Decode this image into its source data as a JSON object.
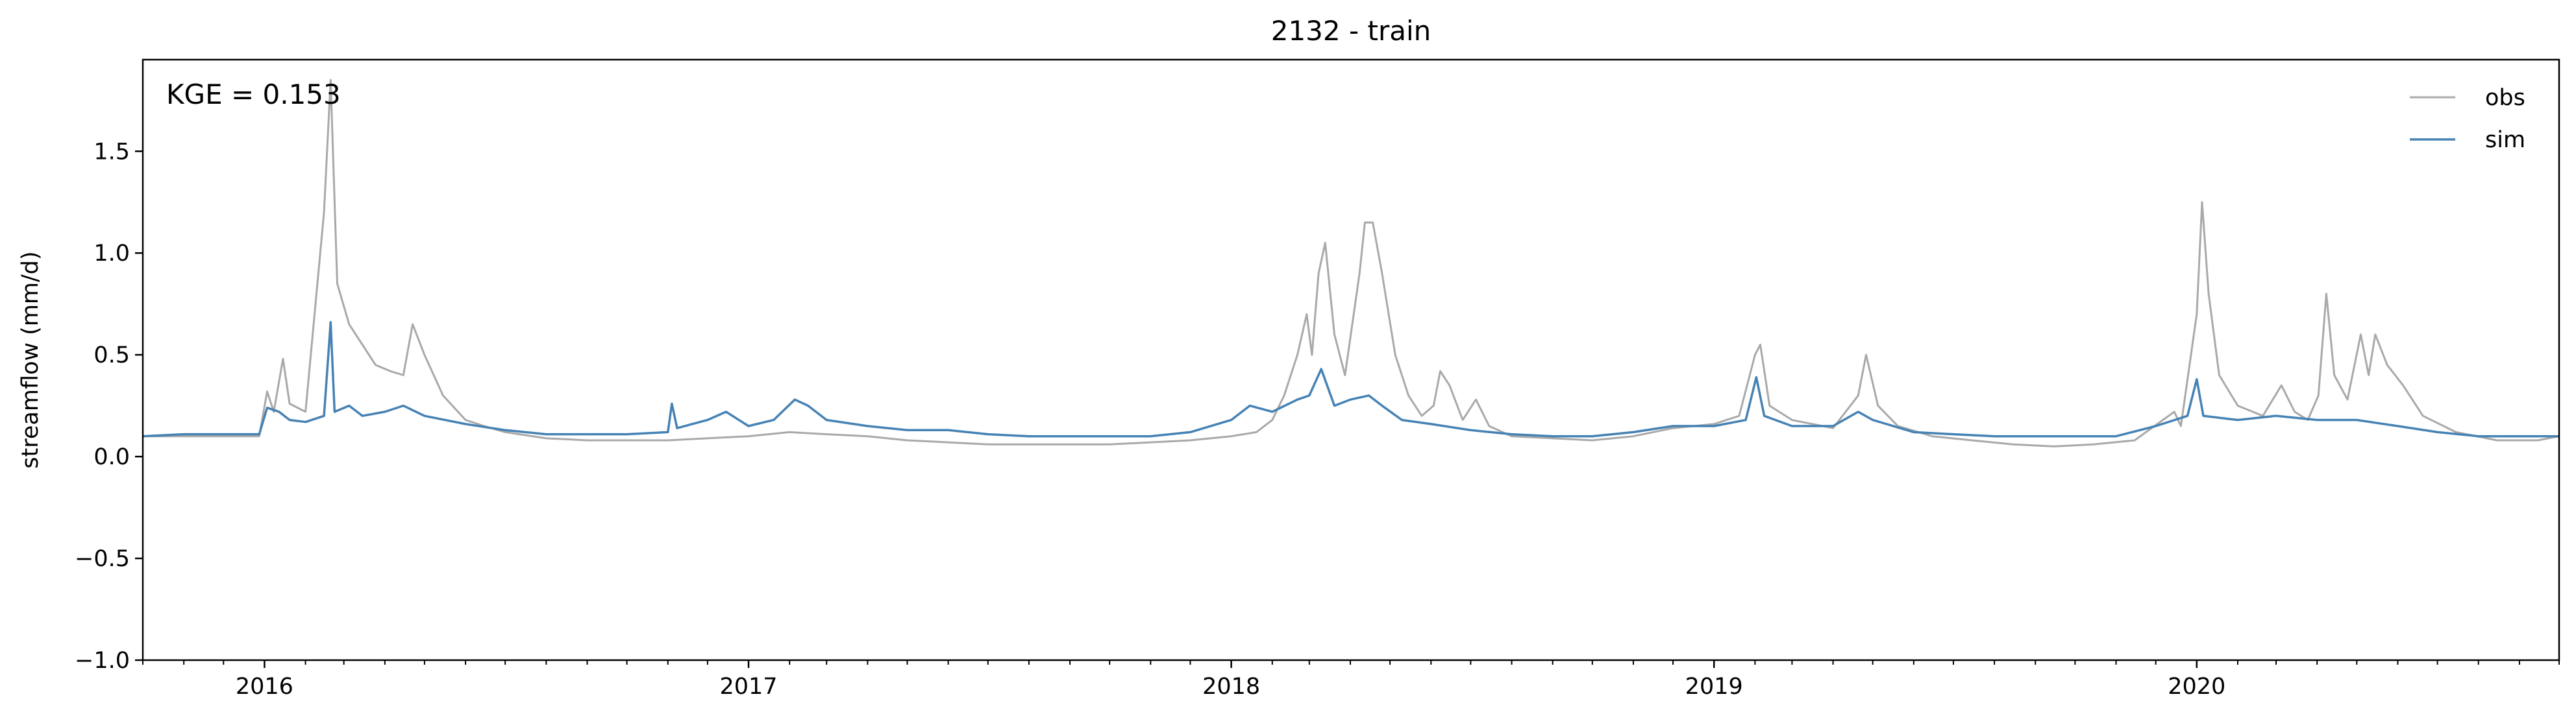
{
  "chart_data": {
    "type": "line",
    "title": "2132 - train",
    "xlabel": "",
    "ylabel": "streamflow (mm/d)",
    "annotation": "KGE = 0.153",
    "xlim": [
      "2015-10-01",
      "2020-10-01"
    ],
    "ylim": [
      -1.0,
      1.95
    ],
    "yticks": [
      -1.0,
      -0.5,
      0.0,
      0.5,
      1.0,
      1.5
    ],
    "ytick_labels": [
      "−1.0",
      "−0.5",
      "0.0",
      "0.5",
      "1.0",
      "1.5"
    ],
    "xticks": [
      "2016-01-01",
      "2017-01-01",
      "2018-01-01",
      "2019-01-01",
      "2020-01-01"
    ],
    "xtick_labels": [
      "2016",
      "2017",
      "2018",
      "2019",
      "2020"
    ],
    "grid": false,
    "legend": "top-right",
    "series": [
      {
        "name": "obs",
        "color": "#a9a9a9",
        "points": [
          [
            "2015-10-01",
            0.1
          ],
          [
            "2015-11-01",
            0.1
          ],
          [
            "2015-12-01",
            0.1
          ],
          [
            "2015-12-28",
            0.1
          ],
          [
            "2016-01-03",
            0.32
          ],
          [
            "2016-01-08",
            0.22
          ],
          [
            "2016-01-15",
            0.48
          ],
          [
            "2016-01-20",
            0.26
          ],
          [
            "2016-02-01",
            0.22
          ],
          [
            "2016-02-15",
            1.2
          ],
          [
            "2016-02-20",
            1.85
          ],
          [
            "2016-02-25",
            0.85
          ],
          [
            "2016-03-05",
            0.65
          ],
          [
            "2016-03-15",
            0.55
          ],
          [
            "2016-03-25",
            0.45
          ],
          [
            "2016-04-05",
            0.42
          ],
          [
            "2016-04-15",
            0.4
          ],
          [
            "2016-04-22",
            0.65
          ],
          [
            "2016-05-01",
            0.5
          ],
          [
            "2016-05-15",
            0.3
          ],
          [
            "2016-06-01",
            0.18
          ],
          [
            "2016-06-15",
            0.15
          ],
          [
            "2016-07-01",
            0.12
          ],
          [
            "2016-08-01",
            0.09
          ],
          [
            "2016-09-01",
            0.08
          ],
          [
            "2016-10-01",
            0.08
          ],
          [
            "2016-11-01",
            0.08
          ],
          [
            "2016-12-01",
            0.09
          ],
          [
            "2017-01-01",
            0.1
          ],
          [
            "2017-02-01",
            0.12
          ],
          [
            "2017-03-01",
            0.11
          ],
          [
            "2017-04-01",
            0.1
          ],
          [
            "2017-05-01",
            0.08
          ],
          [
            "2017-06-01",
            0.07
          ],
          [
            "2017-07-01",
            0.06
          ],
          [
            "2017-08-01",
            0.06
          ],
          [
            "2017-09-01",
            0.06
          ],
          [
            "2017-10-01",
            0.06
          ],
          [
            "2017-11-01",
            0.07
          ],
          [
            "2017-12-01",
            0.08
          ],
          [
            "2018-01-01",
            0.1
          ],
          [
            "2018-01-20",
            0.12
          ],
          [
            "2018-02-01",
            0.18
          ],
          [
            "2018-02-10",
            0.3
          ],
          [
            "2018-02-20",
            0.5
          ],
          [
            "2018-02-27",
            0.7
          ],
          [
            "2018-03-03",
            0.5
          ],
          [
            "2018-03-08",
            0.9
          ],
          [
            "2018-03-13",
            1.05
          ],
          [
            "2018-03-20",
            0.6
          ],
          [
            "2018-03-28",
            0.4
          ],
          [
            "2018-04-08",
            0.9
          ],
          [
            "2018-04-12",
            1.15
          ],
          [
            "2018-04-18",
            1.15
          ],
          [
            "2018-04-25",
            0.9
          ],
          [
            "2018-05-05",
            0.5
          ],
          [
            "2018-05-15",
            0.3
          ],
          [
            "2018-05-25",
            0.2
          ],
          [
            "2018-06-03",
            0.25
          ],
          [
            "2018-06-08",
            0.42
          ],
          [
            "2018-06-15",
            0.35
          ],
          [
            "2018-06-25",
            0.18
          ],
          [
            "2018-07-05",
            0.28
          ],
          [
            "2018-07-15",
            0.15
          ],
          [
            "2018-08-01",
            0.1
          ],
          [
            "2018-09-01",
            0.09
          ],
          [
            "2018-10-01",
            0.08
          ],
          [
            "2018-11-01",
            0.1
          ],
          [
            "2018-12-01",
            0.14
          ],
          [
            "2019-01-01",
            0.16
          ],
          [
            "2019-01-20",
            0.2
          ],
          [
            "2019-02-01",
            0.5
          ],
          [
            "2019-02-05",
            0.55
          ],
          [
            "2019-02-12",
            0.25
          ],
          [
            "2019-03-01",
            0.18
          ],
          [
            "2019-04-01",
            0.14
          ],
          [
            "2019-04-20",
            0.3
          ],
          [
            "2019-04-26",
            0.5
          ],
          [
            "2019-05-05",
            0.25
          ],
          [
            "2019-05-20",
            0.15
          ],
          [
            "2019-06-15",
            0.1
          ],
          [
            "2019-07-15",
            0.08
          ],
          [
            "2019-08-15",
            0.06
          ],
          [
            "2019-09-15",
            0.05
          ],
          [
            "2019-10-15",
            0.06
          ],
          [
            "2019-11-15",
            0.08
          ],
          [
            "2019-12-15",
            0.22
          ],
          [
            "2019-12-20",
            0.15
          ],
          [
            "2020-01-01",
            0.7
          ],
          [
            "2020-01-05",
            1.25
          ],
          [
            "2020-01-10",
            0.8
          ],
          [
            "2020-01-18",
            0.4
          ],
          [
            "2020-02-01",
            0.25
          ],
          [
            "2020-02-20",
            0.2
          ],
          [
            "2020-03-05",
            0.35
          ],
          [
            "2020-03-15",
            0.22
          ],
          [
            "2020-03-25",
            0.18
          ],
          [
            "2020-04-02",
            0.3
          ],
          [
            "2020-04-08",
            0.8
          ],
          [
            "2020-04-14",
            0.4
          ],
          [
            "2020-04-24",
            0.28
          ],
          [
            "2020-05-04",
            0.6
          ],
          [
            "2020-05-10",
            0.4
          ],
          [
            "2020-05-15",
            0.6
          ],
          [
            "2020-05-24",
            0.45
          ],
          [
            "2020-06-05",
            0.35
          ],
          [
            "2020-06-20",
            0.2
          ],
          [
            "2020-07-15",
            0.12
          ],
          [
            "2020-08-15",
            0.08
          ],
          [
            "2020-09-15",
            0.08
          ],
          [
            "2020-10-01",
            0.1
          ]
        ]
      },
      {
        "name": "sim",
        "color": "#4682b4",
        "points": [
          [
            "2015-10-01",
            0.1
          ],
          [
            "2015-11-01",
            0.11
          ],
          [
            "2015-12-01",
            0.11
          ],
          [
            "2015-12-28",
            0.11
          ],
          [
            "2016-01-03",
            0.24
          ],
          [
            "2016-01-12",
            0.22
          ],
          [
            "2016-01-20",
            0.18
          ],
          [
            "2016-02-01",
            0.17
          ],
          [
            "2016-02-15",
            0.2
          ],
          [
            "2016-02-20",
            0.66
          ],
          [
            "2016-02-23",
            0.22
          ],
          [
            "2016-03-05",
            0.25
          ],
          [
            "2016-03-15",
            0.2
          ],
          [
            "2016-04-01",
            0.22
          ],
          [
            "2016-04-15",
            0.25
          ],
          [
            "2016-05-01",
            0.2
          ],
          [
            "2016-06-01",
            0.16
          ],
          [
            "2016-07-01",
            0.13
          ],
          [
            "2016-08-01",
            0.11
          ],
          [
            "2016-09-01",
            0.11
          ],
          [
            "2016-10-01",
            0.11
          ],
          [
            "2016-11-01",
            0.12
          ],
          [
            "2016-11-04",
            0.26
          ],
          [
            "2016-11-08",
            0.14
          ],
          [
            "2016-12-01",
            0.18
          ],
          [
            "2016-12-15",
            0.22
          ],
          [
            "2017-01-01",
            0.15
          ],
          [
            "2017-01-20",
            0.18
          ],
          [
            "2017-02-05",
            0.28
          ],
          [
            "2017-02-15",
            0.25
          ],
          [
            "2017-03-01",
            0.18
          ],
          [
            "2017-04-01",
            0.15
          ],
          [
            "2017-05-01",
            0.13
          ],
          [
            "2017-06-01",
            0.13
          ],
          [
            "2017-07-01",
            0.11
          ],
          [
            "2017-08-01",
            0.1
          ],
          [
            "2017-09-01",
            0.1
          ],
          [
            "2017-10-01",
            0.1
          ],
          [
            "2017-11-01",
            0.1
          ],
          [
            "2017-12-01",
            0.12
          ],
          [
            "2018-01-01",
            0.18
          ],
          [
            "2018-01-15",
            0.25
          ],
          [
            "2018-02-01",
            0.22
          ],
          [
            "2018-02-20",
            0.28
          ],
          [
            "2018-03-01",
            0.3
          ],
          [
            "2018-03-10",
            0.43
          ],
          [
            "2018-03-20",
            0.25
          ],
          [
            "2018-04-01",
            0.28
          ],
          [
            "2018-04-15",
            0.3
          ],
          [
            "2018-04-25",
            0.25
          ],
          [
            "2018-05-10",
            0.18
          ],
          [
            "2018-06-01",
            0.16
          ],
          [
            "2018-07-01",
            0.13
          ],
          [
            "2018-08-01",
            0.11
          ],
          [
            "2018-09-01",
            0.1
          ],
          [
            "2018-10-01",
            0.1
          ],
          [
            "2018-11-01",
            0.12
          ],
          [
            "2018-12-01",
            0.15
          ],
          [
            "2019-01-01",
            0.15
          ],
          [
            "2019-01-25",
            0.18
          ],
          [
            "2019-02-02",
            0.39
          ],
          [
            "2019-02-08",
            0.2
          ],
          [
            "2019-03-01",
            0.15
          ],
          [
            "2019-04-01",
            0.15
          ],
          [
            "2019-04-20",
            0.22
          ],
          [
            "2019-05-01",
            0.18
          ],
          [
            "2019-06-01",
            0.12
          ],
          [
            "2019-07-01",
            0.11
          ],
          [
            "2019-08-01",
            0.1
          ],
          [
            "2019-09-01",
            0.1
          ],
          [
            "2019-10-01",
            0.1
          ],
          [
            "2019-11-01",
            0.1
          ],
          [
            "2019-12-01",
            0.15
          ],
          [
            "2019-12-25",
            0.2
          ],
          [
            "2020-01-01",
            0.38
          ],
          [
            "2020-01-06",
            0.2
          ],
          [
            "2020-02-01",
            0.18
          ],
          [
            "2020-03-01",
            0.2
          ],
          [
            "2020-04-01",
            0.18
          ],
          [
            "2020-05-01",
            0.18
          ],
          [
            "2020-06-01",
            0.15
          ],
          [
            "2020-07-01",
            0.12
          ],
          [
            "2020-08-01",
            0.1
          ],
          [
            "2020-09-01",
            0.1
          ],
          [
            "2020-10-01",
            0.1
          ]
        ]
      }
    ]
  }
}
